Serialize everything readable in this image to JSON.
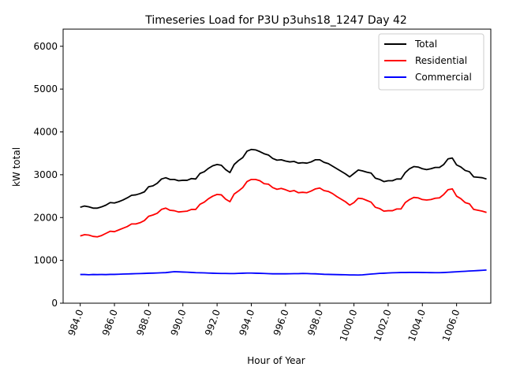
{
  "chart_data": {
    "type": "line",
    "title": "Timeseries Load for P3U p3uhs18_1247  Day 42",
    "xlabel": "Hour of Year",
    "ylabel": "kW total",
    "xlim": [
      983.0,
      1008.0
    ],
    "ylim": [
      0,
      6400
    ],
    "xticks": [
      984,
      986,
      988,
      990,
      992,
      994,
      996,
      998,
      1000,
      1002,
      1004,
      1006
    ],
    "xtick_labels": [
      "984.0",
      "986.0",
      "988.0",
      "990.0",
      "992.0",
      "994.0",
      "996.0",
      "998.0",
      "1000.0",
      "1002.0",
      "1004.0",
      "1006.0"
    ],
    "yticks": [
      0,
      1000,
      2000,
      3000,
      4000,
      5000,
      6000
    ],
    "ytick_labels": [
      "0",
      "1000",
      "2000",
      "3000",
      "4000",
      "5000",
      "6000"
    ],
    "legend_position": "top-right",
    "x": [
      984.0,
      984.25,
      984.5,
      984.75,
      985.0,
      985.25,
      985.5,
      985.75,
      986.0,
      986.25,
      986.5,
      986.75,
      987.0,
      987.25,
      987.5,
      987.75,
      988.0,
      988.25,
      988.5,
      988.75,
      989.0,
      989.25,
      989.5,
      989.75,
      990.0,
      990.25,
      990.5,
      990.75,
      991.0,
      991.25,
      991.5,
      991.75,
      992.0,
      992.25,
      992.5,
      992.75,
      993.0,
      993.25,
      993.5,
      993.75,
      994.0,
      994.25,
      994.5,
      994.75,
      995.0,
      995.25,
      995.5,
      995.75,
      996.0,
      996.25,
      996.5,
      996.75,
      997.0,
      997.25,
      997.5,
      997.75,
      998.0,
      998.25,
      998.5,
      998.75,
      999.0,
      999.25,
      999.5,
      999.75,
      1000.0,
      1000.25,
      1000.5,
      1000.75,
      1001.0,
      1001.25,
      1001.5,
      1001.75,
      1002.0,
      1002.25,
      1002.5,
      1002.75,
      1003.0,
      1003.25,
      1003.5,
      1003.75,
      1004.0,
      1004.25,
      1004.5,
      1004.75,
      1005.0,
      1005.25,
      1005.5,
      1005.75,
      1006.0,
      1006.25,
      1006.5,
      1006.75,
      1007.0,
      1007.25,
      1007.5,
      1007.75
    ],
    "series": [
      {
        "name": "Total",
        "color": "#000000",
        "values": [
          2240,
          2270,
          2250,
          2220,
          2220,
          2250,
          2290,
          2350,
          2340,
          2370,
          2410,
          2460,
          2520,
          2530,
          2560,
          2600,
          2720,
          2740,
          2800,
          2900,
          2930,
          2890,
          2890,
          2860,
          2870,
          2870,
          2910,
          2900,
          3030,
          3070,
          3150,
          3210,
          3240,
          3220,
          3120,
          3050,
          3240,
          3330,
          3400,
          3550,
          3590,
          3580,
          3540,
          3490,
          3460,
          3380,
          3340,
          3350,
          3320,
          3300,
          3310,
          3270,
          3280,
          3270,
          3300,
          3350,
          3350,
          3290,
          3260,
          3200,
          3140,
          3080,
          3020,
          2950,
          3030,
          3110,
          3090,
          3060,
          3040,
          2920,
          2890,
          2840,
          2860,
          2860,
          2900,
          2900,
          3050,
          3140,
          3190,
          3180,
          3140,
          3120,
          3140,
          3170,
          3170,
          3240,
          3370,
          3390,
          3230,
          3180,
          3100,
          3070,
          2950,
          2940,
          2930,
          2900
        ]
      },
      {
        "name": "Residential",
        "color": "#ff0000",
        "values": [
          1570,
          1600,
          1590,
          1560,
          1550,
          1580,
          1630,
          1680,
          1670,
          1710,
          1750,
          1790,
          1850,
          1850,
          1880,
          1930,
          2030,
          2060,
          2100,
          2190,
          2220,
          2170,
          2160,
          2130,
          2140,
          2150,
          2190,
          2190,
          2310,
          2360,
          2440,
          2500,
          2540,
          2530,
          2430,
          2370,
          2550,
          2620,
          2700,
          2840,
          2890,
          2890,
          2860,
          2790,
          2780,
          2700,
          2660,
          2680,
          2650,
          2610,
          2630,
          2580,
          2590,
          2580,
          2620,
          2670,
          2690,
          2630,
          2610,
          2560,
          2490,
          2430,
          2370,
          2290,
          2350,
          2450,
          2440,
          2400,
          2360,
          2240,
          2210,
          2150,
          2160,
          2160,
          2200,
          2200,
          2350,
          2420,
          2470,
          2460,
          2420,
          2410,
          2420,
          2450,
          2460,
          2540,
          2650,
          2670,
          2500,
          2440,
          2350,
          2320,
          2190,
          2170,
          2150,
          2120
        ]
      },
      {
        "name": "Commercial",
        "color": "#0000ff",
        "values": [
          670,
          670,
          665,
          670,
          668,
          670,
          668,
          672,
          672,
          676,
          680,
          683,
          686,
          690,
          692,
          695,
          700,
          702,
          706,
          710,
          714,
          725,
          735,
          732,
          728,
          724,
          718,
          712,
          710,
          708,
          704,
          700,
          697,
          694,
          694,
          692,
          692,
          697,
          700,
          703,
          704,
          700,
          698,
          694,
          690,
          686,
          686,
          686,
          686,
          688,
          690,
          690,
          694,
          692,
          688,
          686,
          680,
          675,
          672,
          670,
          668,
          666,
          664,
          660,
          660,
          658,
          662,
          672,
          680,
          688,
          696,
          700,
          706,
          710,
          712,
          716,
          716,
          718,
          718,
          718,
          716,
          715,
          714,
          712,
          712,
          716,
          722,
          728,
          733,
          740,
          745,
          752,
          756,
          762,
          768,
          775
        ]
      }
    ]
  }
}
